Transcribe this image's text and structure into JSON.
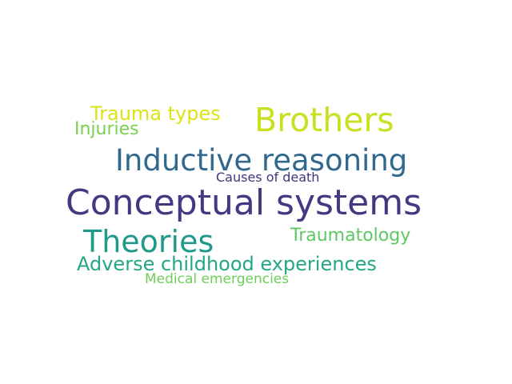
{
  "words": {
    "conceptual_systems": {
      "text": "Conceptual systems",
      "color": "#453882"
    },
    "inductive_reasoning": {
      "text": "Inductive reasoning",
      "color": "#31688e"
    },
    "brothers": {
      "text": "Brothers",
      "color": "#c8e020"
    },
    "theories": {
      "text": "Theories",
      "color": "#1f9a8a"
    },
    "adverse_childhood_experiences": {
      "text": "Adverse childhood experiences",
      "color": "#22a884"
    },
    "trauma_types": {
      "text": "Trauma types",
      "color": "#dde318"
    },
    "injuries": {
      "text": "Injuries",
      "color": "#7ad151"
    },
    "traumatology": {
      "text": "Traumatology",
      "color": "#5ec962"
    },
    "causes_of_death": {
      "text": "Causes of death",
      "color": "#46327e"
    },
    "medical_emergencies": {
      "text": "Medical emergencies",
      "color": "#6ece58"
    }
  }
}
